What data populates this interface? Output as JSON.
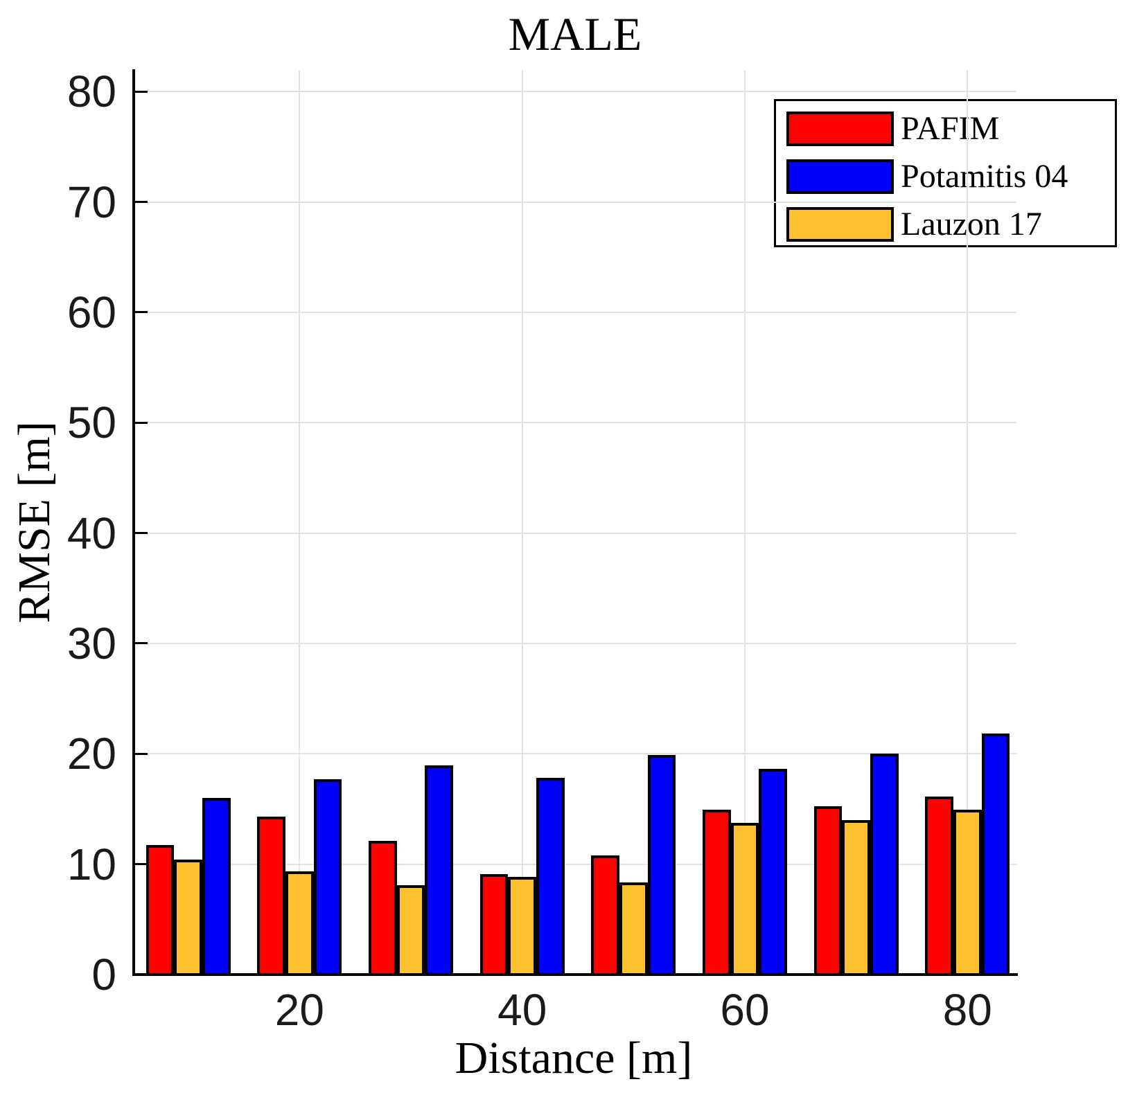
{
  "chart_data": {
    "type": "bar",
    "title": "MALE",
    "xlabel": "Distance [m]",
    "ylabel": "RMSE [m]",
    "categories": [
      10,
      20,
      30,
      40,
      50,
      60,
      70,
      80
    ],
    "x_ticks": [
      20,
      40,
      60,
      80
    ],
    "y_ticks": [
      0,
      10,
      20,
      30,
      40,
      50,
      60,
      70,
      80
    ],
    "xlim": [
      5.1,
      84.4
    ],
    "ylim": [
      0,
      81.9
    ],
    "grid": true,
    "legend_position": "top-right",
    "bar_group_order": [
      "PAFIM",
      "Lauzon 17",
      "Potamitis 04"
    ],
    "series": [
      {
        "name": "PAFIM",
        "color": "#FF0000",
        "values": [
          11.6,
          14.2,
          12.0,
          9.0,
          10.7,
          14.8,
          15.1,
          16.0
        ]
      },
      {
        "name": "Potamitis 04",
        "color": "#0000FF",
        "values": [
          15.9,
          17.6,
          18.8,
          17.7,
          19.8,
          18.5,
          19.9,
          21.7
        ]
      },
      {
        "name": "Lauzon 17",
        "color": "#FDC02E",
        "values": [
          10.3,
          9.2,
          8.0,
          8.7,
          8.2,
          13.6,
          13.9,
          14.8
        ]
      }
    ],
    "axis_color": "#000000",
    "grid_color": "#E2E2E2",
    "tick_label_color": "#1A1A1A"
  }
}
